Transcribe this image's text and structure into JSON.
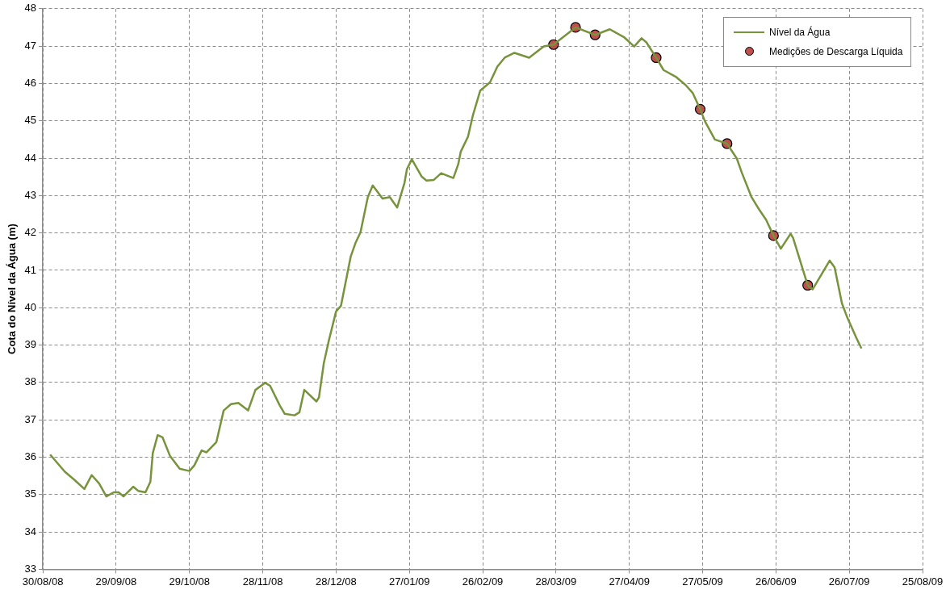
{
  "chart_data": {
    "type": "line",
    "ylabel": "Cota do Nível da Água (m)",
    "xlim": [
      "2008-08-30",
      "2009-08-25"
    ],
    "xticks": [
      {
        "value": "2008-08-30",
        "label": "30/08/08"
      },
      {
        "value": "2008-09-29",
        "label": "29/09/08"
      },
      {
        "value": "2008-10-29",
        "label": "29/10/08"
      },
      {
        "value": "2008-11-28",
        "label": "28/11/08"
      },
      {
        "value": "2008-12-28",
        "label": "28/12/08"
      },
      {
        "value": "2009-01-27",
        "label": "27/01/09"
      },
      {
        "value": "2009-02-26",
        "label": "26/02/09"
      },
      {
        "value": "2009-03-28",
        "label": "28/03/09"
      },
      {
        "value": "2009-04-27",
        "label": "27/04/09"
      },
      {
        "value": "2009-05-27",
        "label": "27/05/09"
      },
      {
        "value": "2009-06-26",
        "label": "26/06/09"
      },
      {
        "value": "2009-07-26",
        "label": "26/07/09"
      },
      {
        "value": "2009-08-25",
        "label": "25/08/09"
      }
    ],
    "ylim": [
      33,
      48
    ],
    "yticks": [
      33,
      34,
      35,
      36,
      37,
      38,
      39,
      40,
      41,
      42,
      43,
      44,
      45,
      46,
      47,
      48
    ],
    "grid": true,
    "legend": "top right",
    "line_style": "solid",
    "series": [
      {
        "name": "Nível da Água",
        "marker": "none",
        "color": "#77933c",
        "x": [
          "2008-09-02",
          "2008-09-08",
          "2008-09-12",
          "2008-09-16",
          "2008-09-19",
          "2008-09-22",
          "2008-09-25",
          "2008-09-28",
          "2008-09-30",
          "2008-10-02",
          "2008-10-06",
          "2008-10-08",
          "2008-10-11",
          "2008-10-13",
          "2008-10-14",
          "2008-10-16",
          "2008-10-18",
          "2008-10-21",
          "2008-10-25",
          "2008-10-29",
          "2008-10-31",
          "2008-11-03",
          "2008-11-05",
          "2008-11-09",
          "2008-11-12",
          "2008-11-15",
          "2008-11-18",
          "2008-11-22",
          "2008-11-25",
          "2008-11-29",
          "2008-12-01",
          "2008-12-05",
          "2008-12-07",
          "2008-12-11",
          "2008-12-13",
          "2008-12-15",
          "2008-12-20",
          "2008-12-21",
          "2008-12-23",
          "2008-12-25",
          "2008-12-28",
          "2008-12-30",
          "2009-01-03",
          "2009-01-05",
          "2009-01-07",
          "2009-01-10",
          "2009-01-12",
          "2009-01-16",
          "2009-01-19",
          "2009-01-22",
          "2009-01-25",
          "2009-01-26",
          "2009-01-28",
          "2009-02-01",
          "2009-02-03",
          "2009-02-06",
          "2009-02-09",
          "2009-02-14",
          "2009-02-16",
          "2009-02-17",
          "2009-02-20",
          "2009-02-22",
          "2009-02-25",
          "2009-03-01",
          "2009-03-04",
          "2009-03-07",
          "2009-03-11",
          "2009-03-17",
          "2009-03-23",
          "2009-03-27",
          "2009-04-05",
          "2009-04-13",
          "2009-04-19",
          "2009-04-25",
          "2009-04-29",
          "2009-05-02",
          "2009-05-04",
          "2009-05-08",
          "2009-05-11",
          "2009-05-16",
          "2009-05-20",
          "2009-05-23",
          "2009-05-26",
          "2009-05-28",
          "2009-06-01",
          "2009-06-06",
          "2009-06-10",
          "2009-06-12",
          "2009-06-16",
          "2009-06-19",
          "2009-06-22",
          "2009-06-25",
          "2009-06-28",
          "2009-07-02",
          "2009-07-03",
          "2009-07-09",
          "2009-07-11",
          "2009-07-13",
          "2009-07-18",
          "2009-07-20",
          "2009-07-23",
          "2009-07-25",
          "2009-07-29",
          "2009-07-31"
        ],
        "values": [
          36.07,
          35.61,
          35.39,
          35.15,
          35.52,
          35.3,
          34.95,
          35.06,
          35.06,
          34.95,
          35.21,
          35.1,
          35.06,
          35.34,
          36.11,
          36.59,
          36.53,
          36.04,
          35.69,
          35.63,
          35.78,
          36.18,
          36.13,
          36.4,
          37.25,
          37.42,
          37.45,
          37.25,
          37.8,
          37.99,
          37.91,
          37.38,
          37.16,
          37.12,
          37.2,
          37.8,
          37.49,
          37.6,
          38.52,
          39.11,
          39.9,
          40.05,
          41.37,
          41.74,
          42.02,
          42.96,
          43.27,
          42.92,
          42.96,
          42.68,
          43.34,
          43.71,
          43.97,
          43.51,
          43.4,
          43.42,
          43.6,
          43.47,
          43.84,
          44.17,
          44.58,
          45.15,
          45.81,
          46.03,
          46.45,
          46.69,
          46.82,
          46.69,
          46.99,
          47.04,
          47.5,
          47.3,
          47.45,
          47.23,
          46.99,
          47.21,
          47.1,
          46.69,
          46.36,
          46.18,
          45.96,
          45.74,
          45.31,
          44.98,
          44.5,
          44.39,
          43.99,
          43.62,
          42.96,
          42.64,
          42.35,
          41.93,
          41.58,
          41.98,
          41.87,
          40.6,
          40.49,
          40.71,
          41.26,
          41.08,
          40.12,
          39.77,
          39.18,
          38.91
        ]
      },
      {
        "name": "Medições de Descarga Líquida",
        "type": "scatter",
        "marker": "circle",
        "color": "#c0504d",
        "x": [
          "2009-03-27",
          "2009-04-05",
          "2009-04-13",
          "2009-05-08",
          "2009-05-26",
          "2009-06-06",
          "2009-06-25",
          "2009-07-09"
        ],
        "values": [
          47.04,
          47.5,
          47.3,
          46.69,
          45.31,
          44.39,
          41.93,
          40.6
        ]
      }
    ]
  }
}
